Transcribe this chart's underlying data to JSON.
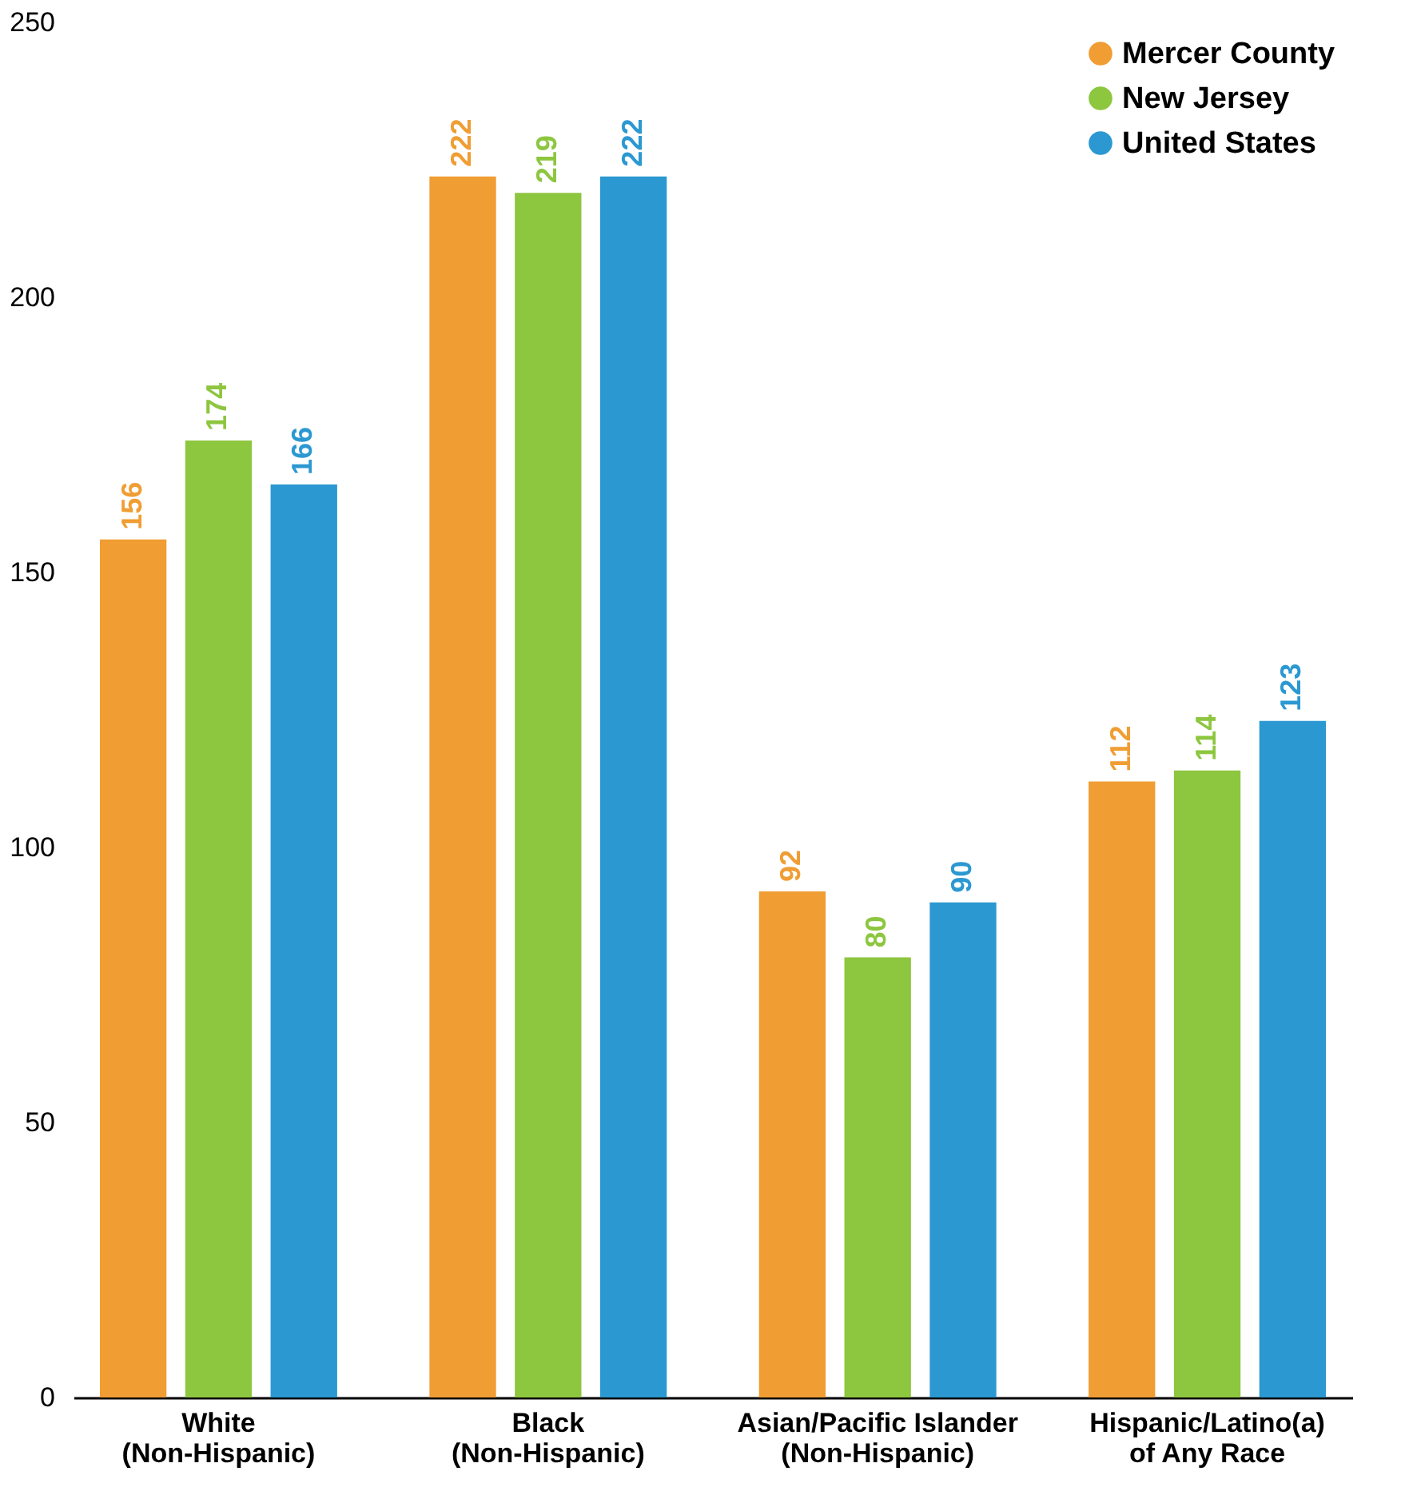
{
  "chart_data": {
    "type": "bar",
    "categories": [
      "White\n(Non-Hispanic)",
      "Black\n(Non-Hispanic)",
      "Asian/Pacific Islander\n(Non-Hispanic)",
      "Hispanic/Latino(a)\nof Any Race"
    ],
    "series": [
      {
        "name": "Mercer County",
        "color": "#f09d33",
        "values": [
          156,
          222,
          92,
          112
        ]
      },
      {
        "name": "New Jersey",
        "color": "#8dc63f",
        "values": [
          174,
          219,
          80,
          114
        ]
      },
      {
        "name": "United States",
        "color": "#2b98d1",
        "values": [
          166,
          222,
          90,
          123
        ]
      }
    ],
    "ylim": [
      0,
      250
    ],
    "yticks": [
      0,
      50,
      100,
      150,
      200,
      250
    ],
    "grid": false,
    "legend": "top right",
    "data_labels": true
  }
}
